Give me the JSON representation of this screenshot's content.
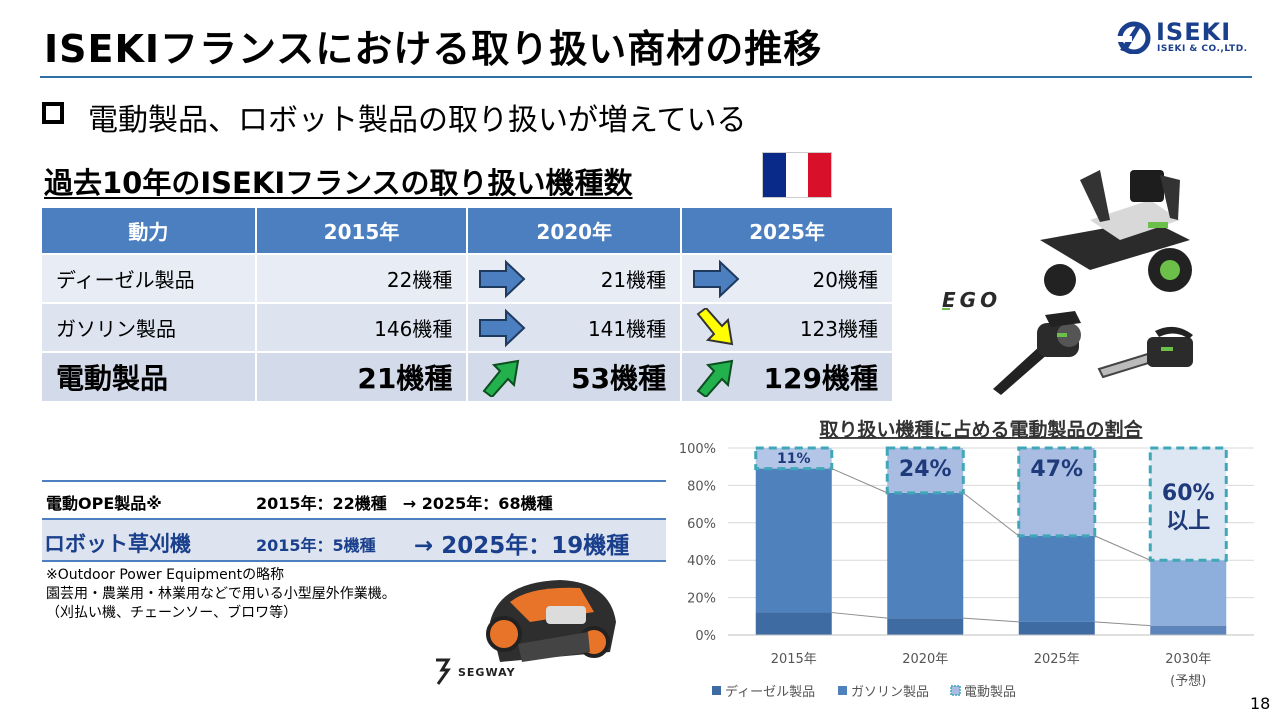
{
  "title": "ISEKIフランスにおける取り扱い商材の推移",
  "logo": {
    "word": "ISEKI",
    "sub": "ISEKI & CO.,LTD."
  },
  "subtitle": "電動製品、ロボット製品の取り扱いが増えている",
  "section_head": "過去10年のISEKIフランスの取り扱い機種数",
  "flag_colors": [
    "#0a2a8a",
    "#ffffff",
    "#d9102a"
  ],
  "table": {
    "headers": [
      "動力",
      "2015年",
      "2020年",
      "2025年"
    ],
    "rows": [
      {
        "label": "ディーゼル製品",
        "v2015": "22機種",
        "v2020": "21機種",
        "v2025": "20機種",
        "arrows": [
          "right-blue",
          "right-blue"
        ]
      },
      {
        "label": "ガソリン製品",
        "v2015": "146機種",
        "v2020": "141機種",
        "v2025": "123機種",
        "arrows": [
          "right-blue",
          "down-right-yellow"
        ]
      },
      {
        "label": "電動製品",
        "v2015": "21機種",
        "v2020": "53機種",
        "v2025": "129機種",
        "arrows": [
          "up-right-green",
          "up-right-green"
        ]
      }
    ]
  },
  "ope": {
    "label": "電動OPE製品※",
    "value": "2015年：22機種　→ 2025年：68機種"
  },
  "robot": {
    "label": "ロボット草刈機",
    "v1": "2015年：5機種",
    "v2": "→ 2025年：19機種"
  },
  "note": [
    "※Outdoor Power Equipmentの略称",
    "園芸用・農業用・林業用などで用いる小型屋外作業機。",
    "（刈払い機、チェーンソー、ブロワ等）"
  ],
  "brands": {
    "ego": "EGO",
    "segway": "SEGWAY"
  },
  "chart_data": {
    "type": "bar",
    "stacked": true,
    "title": "取り扱い機種に占める電動製品の割合",
    "categories": [
      "2015年",
      "2020年",
      "2025年",
      "2030年"
    ],
    "category_sub": [
      "",
      "",
      "",
      "(予想)"
    ],
    "series": [
      {
        "name": "ディーゼル製品",
        "color": "#3f6ba3",
        "values": [
          12,
          9,
          7,
          5
        ]
      },
      {
        "name": "ガソリン製品",
        "color": "#4f81bd",
        "values": [
          77,
          67,
          46,
          35
        ]
      },
      {
        "name": "電動製品",
        "color": "#b4c6e7",
        "values": [
          11,
          24,
          47,
          60
        ]
      }
    ],
    "data_labels": [
      "11%",
      "24%",
      "47%",
      "60%\n以上"
    ],
    "yticks": [
      "0%",
      "20%",
      "40%",
      "60%",
      "80%",
      "100%"
    ],
    "ylim": [
      0,
      100
    ],
    "grid": true,
    "legend": "bottom"
  },
  "page_number": "18"
}
